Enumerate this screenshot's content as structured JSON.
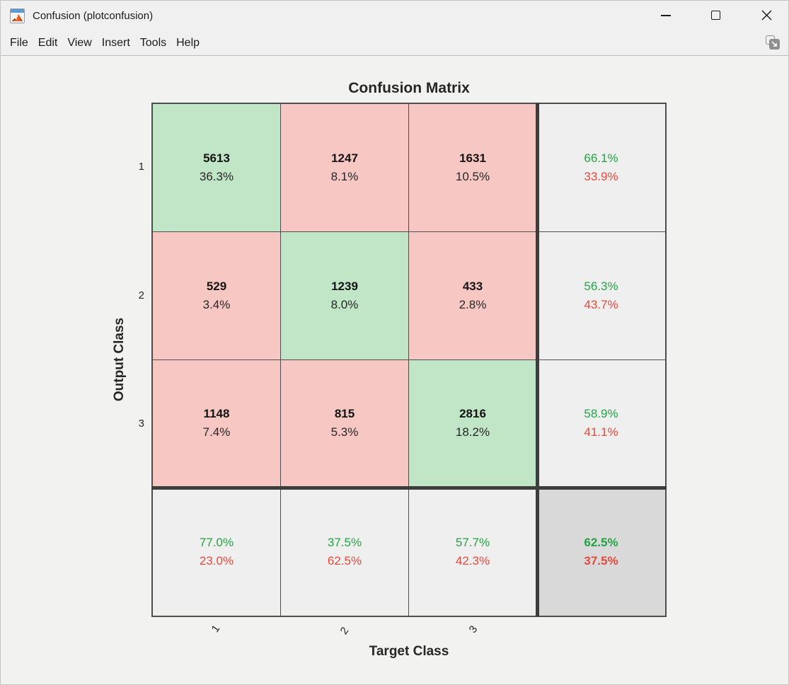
{
  "window": {
    "title": "Confusion (plotconfusion)"
  },
  "menu": {
    "items": [
      "File",
      "Edit",
      "View",
      "Insert",
      "Tools",
      "Help"
    ]
  },
  "figure": {
    "title": "Confusion Matrix",
    "x_label": "Target Class",
    "y_label": "Output Class",
    "x_ticks": [
      "1",
      "2",
      "3"
    ],
    "y_ticks": [
      "1",
      "2",
      "3"
    ]
  },
  "colors": {
    "diagonal_cell": "#c0e5c7",
    "off_diagonal_cell": "#f7c7c3",
    "summary_cell": "#efefef",
    "total_cell": "#d9d9d9",
    "positive_text": "#22a344",
    "negative_text": "#e6493d",
    "grid_line": "#4e4e4e",
    "thick_line": "#3d3d3d"
  },
  "chart_data": {
    "type": "heatmap",
    "subtype": "confusion-matrix",
    "title": "Confusion Matrix",
    "xlabel": "Target Class",
    "ylabel": "Output Class",
    "classes": [
      "1",
      "2",
      "3"
    ],
    "counts": [
      [
        5613,
        1247,
        1631
      ],
      [
        529,
        1239,
        433
      ],
      [
        1148,
        815,
        2816
      ]
    ],
    "count_percents": [
      [
        "36.3%",
        "8.1%",
        "10.5%"
      ],
      [
        "3.4%",
        "8.0%",
        "2.8%"
      ],
      [
        "7.4%",
        "5.3%",
        "18.2%"
      ]
    ],
    "row_summary": [
      [
        "66.1%",
        "33.9%"
      ],
      [
        "56.3%",
        "43.7%"
      ],
      [
        "58.9%",
        "41.1%"
      ]
    ],
    "col_summary": [
      [
        "77.0%",
        "23.0%"
      ],
      [
        "37.5%",
        "62.5%"
      ],
      [
        "57.7%",
        "42.3%"
      ]
    ],
    "overall": [
      "62.5%",
      "37.5%"
    ],
    "legend_position": "none",
    "grid": true
  }
}
